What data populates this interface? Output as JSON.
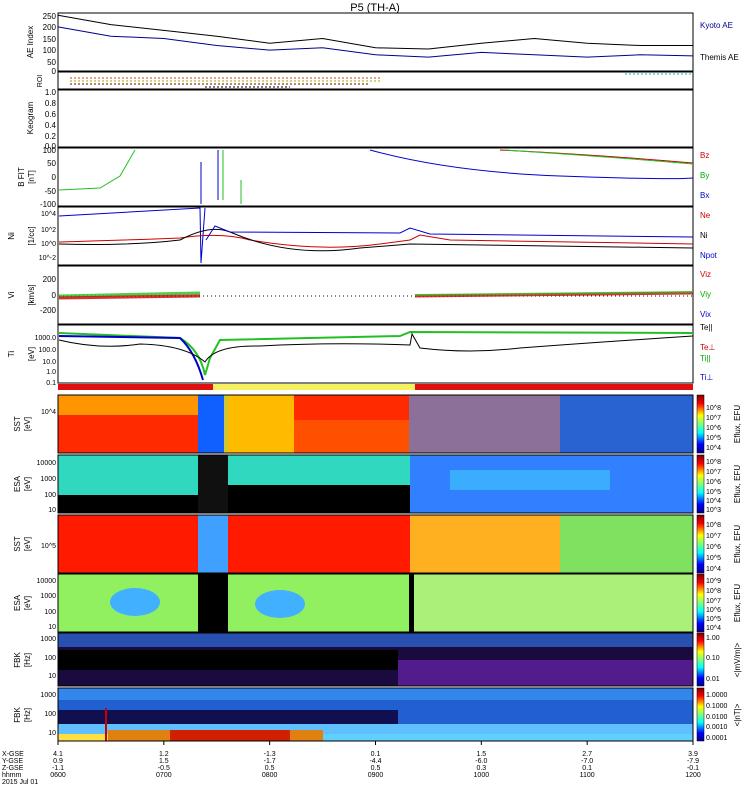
{
  "title": "P5 (TH-A)",
  "date": "2015 Jul 01",
  "chart_data": [
    {
      "type": "line",
      "panel": "AE Index",
      "ylabel": "AE Index",
      "ylim": [
        0,
        250
      ],
      "yticks": [
        "250",
        "200",
        "150",
        "100",
        "50",
        "0"
      ],
      "legend": [
        {
          "name": "Kyoto AE",
          "color": "#00008b"
        },
        {
          "name": "Themis AE",
          "color": "#000000"
        }
      ],
      "series": [
        {
          "name": "Themis AE",
          "x": [
            "0600",
            "0630",
            "0700",
            "0730",
            "0800",
            "0830",
            "0900",
            "0930",
            "1000",
            "1030",
            "1100",
            "1130",
            "1200"
          ],
          "values": [
            240,
            200,
            175,
            150,
            120,
            140,
            100,
            95,
            120,
            140,
            120,
            110,
            110
          ]
        },
        {
          "name": "Kyoto AE",
          "x": [
            "0600",
            "0630",
            "0700",
            "0730",
            "0800",
            "0830",
            "0900",
            "0930",
            "1000",
            "1030",
            "1100",
            "1130",
            "1200"
          ],
          "values": [
            190,
            150,
            140,
            110,
            90,
            100,
            70,
            60,
            80,
            70,
            60,
            70,
            65
          ]
        }
      ]
    },
    {
      "type": "other",
      "panel": "ROI",
      "ylabel": "ROI"
    },
    {
      "type": "line",
      "panel": "Keogram",
      "ylabel": "Keogram",
      "ylim": [
        0,
        1
      ],
      "yticks": [
        "1.0",
        "0.8",
        "0.6",
        "0.4",
        "0.2",
        "0.0"
      ]
    },
    {
      "type": "line",
      "panel": "B FIT",
      "ylabel": "B FIT",
      "ylabel2": "[nT]",
      "ylim": [
        -100,
        100
      ],
      "yticks": [
        "100",
        "50",
        "0",
        "-50",
        "-100"
      ],
      "legend": [
        {
          "name": "Bz",
          "color": "#cc0000"
        },
        {
          "name": "By",
          "color": "#00aa00"
        },
        {
          "name": "Bx",
          "color": "#0000cc"
        }
      ]
    },
    {
      "type": "line",
      "panel": "Ni",
      "ylabel": "Ni",
      "ylabel2": "[1/cc]",
      "yscale": "log",
      "yticks": [
        "10^4",
        "10^2",
        "10^0",
        "10^-2"
      ],
      "legend": [
        {
          "name": "Ne",
          "color": "#cc0000"
        },
        {
          "name": "Ni",
          "color": "#000000"
        },
        {
          "name": "Npot",
          "color": "#0000cc"
        }
      ]
    },
    {
      "type": "line",
      "panel": "Vi",
      "ylabel": "Vi",
      "ylabel2": "[km/s]",
      "ylim": [
        -300,
        300
      ],
      "yticks": [
        "200",
        "0",
        "-200"
      ],
      "legend": [
        {
          "name": "Viz",
          "color": "#cc0000"
        },
        {
          "name": "Viy",
          "color": "#00aa00"
        },
        {
          "name": "Vix",
          "color": "#0000cc"
        }
      ]
    },
    {
      "type": "line",
      "panel": "Ti",
      "ylabel": "Ti",
      "ylabel2": "[eV]",
      "yscale": "log",
      "yticks": [
        "1000.0",
        "100.0",
        "10.0",
        "1.0",
        "0.1"
      ],
      "legend": [
        {
          "name": "Te||",
          "color": "#000000"
        },
        {
          "name": "Te⊥",
          "color": "#cc0000"
        },
        {
          "name": "Ti||",
          "color": "#00aa00"
        },
        {
          "name": "Ti⊥",
          "color": "#0000cc"
        }
      ]
    },
    {
      "type": "heatmap",
      "panel": "SST ion",
      "ylabel": "SST",
      "ylabel2": "[eV]",
      "yticks": [
        "10^4"
      ],
      "colorbar_label": "Eflux, EFU",
      "colorbar_ticks": [
        "10^8",
        "10^7",
        "10^6",
        "10^5",
        "10^4"
      ]
    },
    {
      "type": "heatmap",
      "panel": "ESA ion",
      "ylabel": "ESA",
      "ylabel2": "[eV]",
      "yticks": [
        "10000",
        "1000",
        "100",
        "10"
      ],
      "colorbar_label": "Eflux, EFU",
      "colorbar_ticks": [
        "10^8",
        "10^7",
        "10^6",
        "10^5",
        "10^4",
        "10^3"
      ]
    },
    {
      "type": "heatmap",
      "panel": "SST electron",
      "ylabel": "SST",
      "ylabel2": "[eV]",
      "yticks": [
        "10^5"
      ],
      "colorbar_label": "Eflux, EFU",
      "colorbar_ticks": [
        "10^8",
        "10^7",
        "10^6",
        "10^5",
        "10^4"
      ]
    },
    {
      "type": "heatmap",
      "panel": "ESA electron",
      "ylabel": "ESA",
      "ylabel2": "[eV]",
      "yticks": [
        "10000",
        "1000",
        "100",
        "10"
      ],
      "colorbar_label": "Eflux, EFU",
      "colorbar_ticks": [
        "10^9",
        "10^8",
        "10^7",
        "10^6",
        "10^5",
        "10^4"
      ]
    },
    {
      "type": "heatmap",
      "panel": "FBK edc12",
      "ylabel": "FBK",
      "ylabel2": "[Hz]",
      "yticks": [
        "1000",
        "100",
        "10"
      ],
      "colorbar_label": "<|mV/m|>",
      "colorbar_ticks": [
        "1.00",
        "0.10",
        "0.01"
      ]
    },
    {
      "type": "heatmap",
      "panel": "FBK scm",
      "ylabel": "FBK",
      "ylabel2": "[Hz]",
      "yticks": [
        "1000",
        "100",
        "10"
      ],
      "colorbar_label": "<|nT|>",
      "colorbar_ticks": [
        "1.0000",
        "0.1000",
        "0.0100",
        "0.0010",
        "0.0001"
      ]
    }
  ],
  "xaxis": {
    "row_labels": [
      "X-GSE",
      "Y-GSE",
      "Z-GSE",
      "hhmm",
      "2015 Jul 01"
    ],
    "columns": [
      {
        "x": "4.1",
        "y": "0.9",
        "z": "-1.1",
        "t": "0600"
      },
      {
        "x": "1.2",
        "y": "1.5",
        "z": "-0.5",
        "t": "0700"
      },
      {
        "x": "-1.3",
        "y": "-1.7",
        "z": "0.5",
        "t": "0800"
      },
      {
        "x": "0.1",
        "y": "-4.4",
        "z": "0.5",
        "t": "0900"
      },
      {
        "x": "1.5",
        "y": "-6.0",
        "z": "0.3",
        "t": "1000"
      },
      {
        "x": "2.7",
        "y": "-7.0",
        "z": "0.1",
        "t": "1100"
      },
      {
        "x": "3.9",
        "y": "-7.9",
        "z": "-0.1",
        "t": "1200"
      }
    ]
  }
}
